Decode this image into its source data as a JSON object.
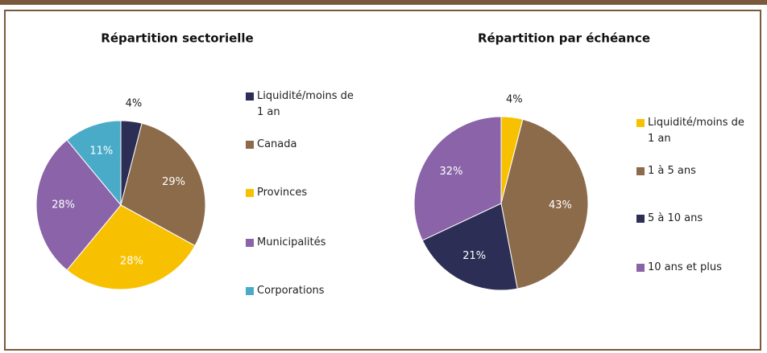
{
  "charts": [
    {
      "chart_data": {
        "type": "pie",
        "title": "Répartition sectorielle",
        "categories": [
          "Liquidité/moins de 1 an",
          "Canada",
          "Provinces",
          "Municipalités",
          "Corporations"
        ],
        "values": [
          4,
          29,
          28,
          28,
          11
        ],
        "value_labels": [
          "4%",
          "29%",
          "28%",
          "28%",
          "11%"
        ],
        "colors": [
          "#2c2e55",
          "#8c6b4a",
          "#f7c102",
          "#8a63a8",
          "#4aabc8"
        ]
      }
    },
    {
      "chart_data": {
        "type": "pie",
        "title": "Répartition par échéance",
        "categories": [
          "Liquidité/moins de 1 an",
          "1 à 5 ans",
          "5 à 10 ans",
          "10 ans et plus"
        ],
        "values": [
          4,
          43,
          21,
          32
        ],
        "value_labels": [
          "4%",
          "43%",
          "21%",
          "32%"
        ],
        "colors": [
          "#f7c102",
          "#8c6b4a",
          "#2c2e55",
          "#8a63a8"
        ]
      }
    }
  ]
}
